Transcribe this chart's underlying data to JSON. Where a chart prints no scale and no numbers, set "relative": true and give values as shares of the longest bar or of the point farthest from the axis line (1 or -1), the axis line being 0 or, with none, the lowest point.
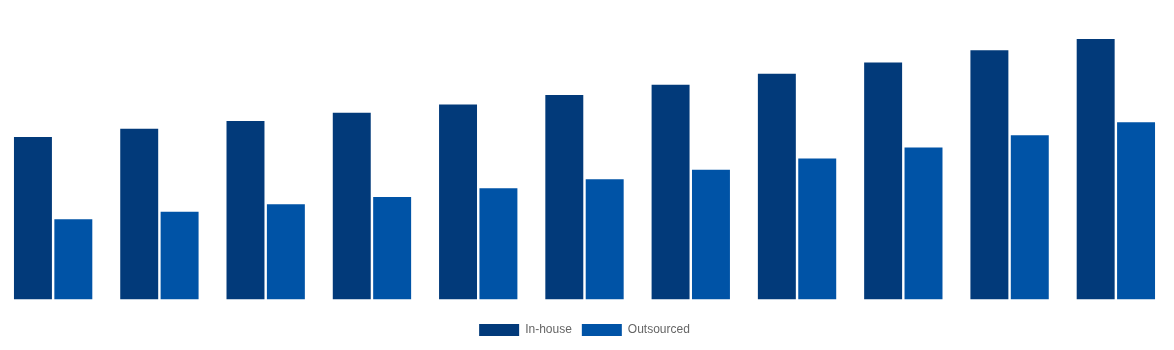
{
  "chart_data": {
    "type": "bar",
    "relative": true,
    "legend": "bottom",
    "categories": [
      null,
      null,
      null,
      null,
      null,
      null,
      null,
      null,
      null,
      null,
      null
    ],
    "series": [
      {
        "name": "In-house",
        "color": "#023a7a",
        "values": [
          0.624,
          0.656,
          0.685,
          0.717,
          0.749,
          0.785,
          0.824,
          0.867,
          0.91,
          0.957,
          1
        ]
      },
      {
        "name": "Outsourced",
        "color": "#0053a6",
        "values": [
          0.308,
          0.337,
          0.366,
          0.394,
          0.427,
          0.462,
          0.498,
          0.541,
          0.584,
          0.631,
          0.681
        ]
      }
    ]
  }
}
